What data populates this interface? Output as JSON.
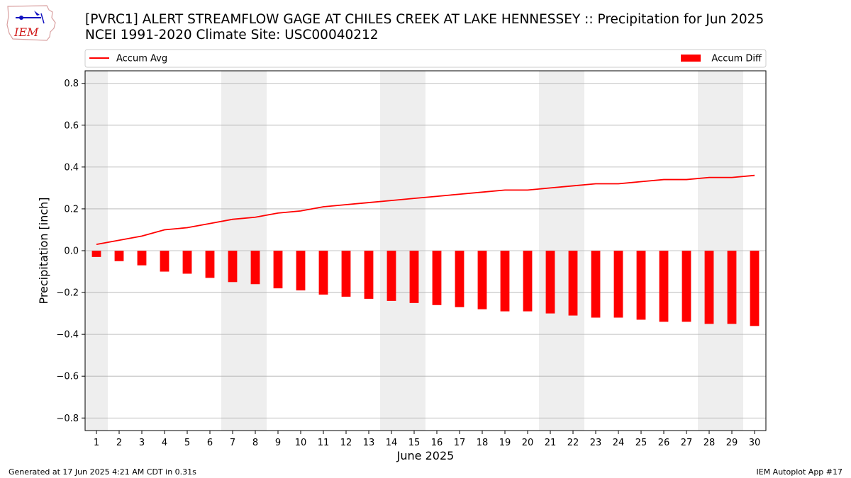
{
  "logo_text": "IEM",
  "title_line1": "[PVRC1] ALERT STREAMFLOW GAGE  AT CHILES CREEK AT LAKE HENNESSEY :: Precipitation for Jun 2025",
  "title_line2": "NCEI 1991-2020 Climate Site: USC00040212",
  "footer_left": "Generated at 17 Jun 2025 4:21 AM CDT in 0.31s",
  "footer_right": "IEM Autoplot App #17",
  "colors": {
    "line": "#ff0000",
    "bar": "#ff0000",
    "weekend_band": "#eeeeee",
    "grid": "#b0b0b0"
  },
  "chart_data": {
    "type": "bar",
    "xlabel": "June 2025",
    "ylabel": "Precipitation [inch]",
    "ylim": [
      -0.86,
      0.86
    ],
    "yticks": [
      "0.8",
      "0.6",
      "0.4",
      "0.2",
      "0.0",
      "−0.2",
      "−0.4",
      "−0.6",
      "−0.8"
    ],
    "ytick_values": [
      0.8,
      0.6,
      0.4,
      0.2,
      0.0,
      -0.2,
      -0.4,
      -0.6,
      -0.8
    ],
    "categories": [
      "1",
      "2",
      "3",
      "4",
      "5",
      "6",
      "7",
      "8",
      "9",
      "10",
      "11",
      "12",
      "13",
      "14",
      "15",
      "16",
      "17",
      "18",
      "19",
      "20",
      "21",
      "22",
      "23",
      "24",
      "25",
      "26",
      "27",
      "28",
      "29",
      "30"
    ],
    "grid": "horizontal",
    "legend_placement": "top",
    "weekend_days": [
      1,
      7,
      8,
      14,
      15,
      21,
      22,
      28,
      29
    ],
    "series": [
      {
        "name": "Accum Avg",
        "kind": "line",
        "values": [
          0.03,
          0.05,
          0.07,
          0.1,
          0.11,
          0.13,
          0.15,
          0.16,
          0.18,
          0.19,
          0.21,
          0.22,
          0.23,
          0.24,
          0.25,
          0.26,
          0.27,
          0.28,
          0.29,
          0.29,
          0.3,
          0.31,
          0.32,
          0.32,
          0.33,
          0.34,
          0.34,
          0.35,
          0.35,
          0.36
        ]
      },
      {
        "name": "Accum Diff",
        "kind": "bar",
        "values": [
          -0.03,
          -0.05,
          -0.07,
          -0.1,
          -0.11,
          -0.13,
          -0.15,
          -0.16,
          -0.18,
          -0.19,
          -0.21,
          -0.22,
          -0.23,
          -0.24,
          -0.25,
          -0.26,
          -0.27,
          -0.28,
          -0.29,
          -0.29,
          -0.3,
          -0.31,
          -0.32,
          -0.32,
          -0.33,
          -0.34,
          -0.34,
          -0.35,
          -0.35,
          -0.36
        ]
      }
    ]
  }
}
